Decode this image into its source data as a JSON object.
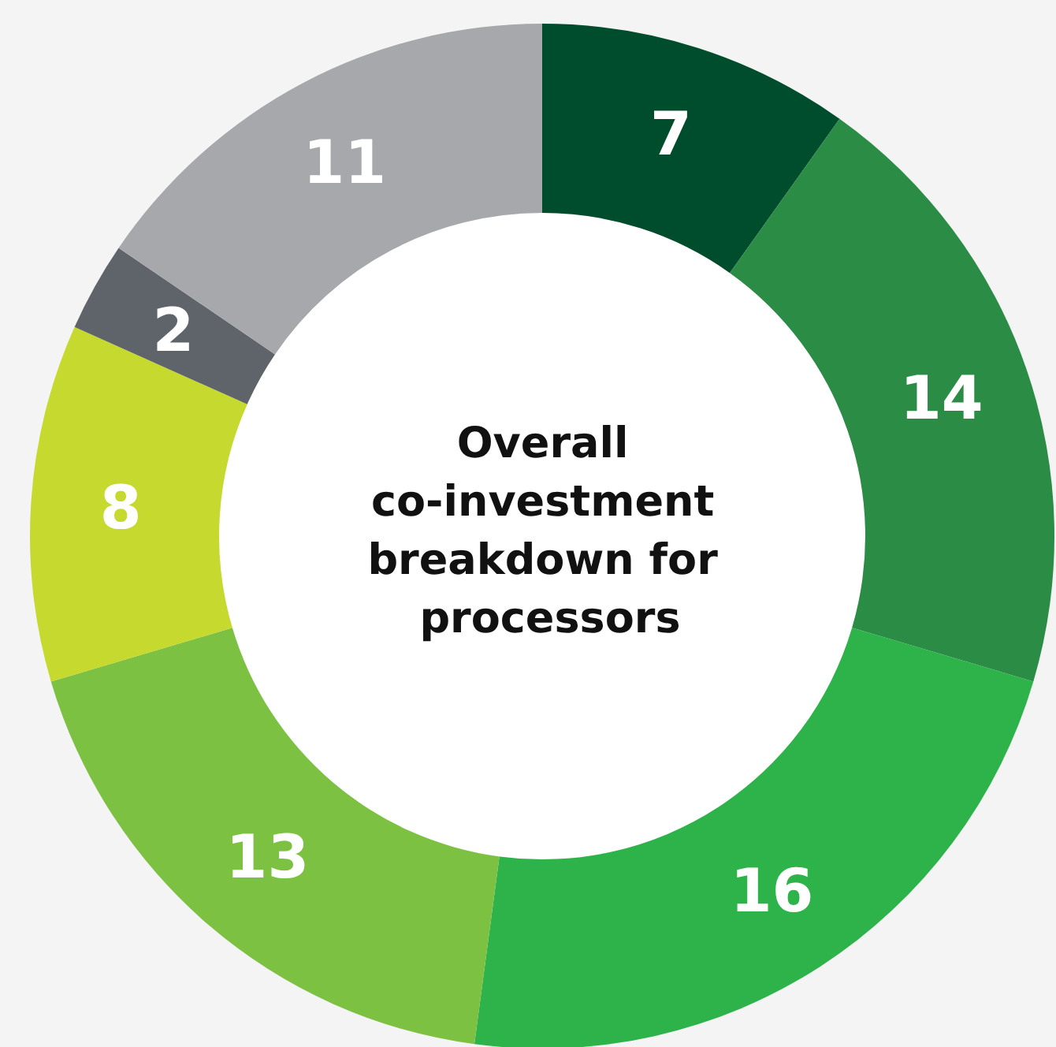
{
  "chart_data": {
    "type": "donut",
    "title": "Overall co-investment breakdown for processors",
    "categories": [
      null,
      null,
      null,
      null,
      null,
      null,
      null
    ],
    "values": [
      7,
      14,
      16,
      13,
      8,
      2,
      11
    ],
    "colors": [
      "#004d2e",
      "#2a8c45",
      "#2db34a",
      "#7dc142",
      "#c6d92f",
      "#5f646b",
      "#a6a8ab"
    ],
    "data_labels": true
  }
}
